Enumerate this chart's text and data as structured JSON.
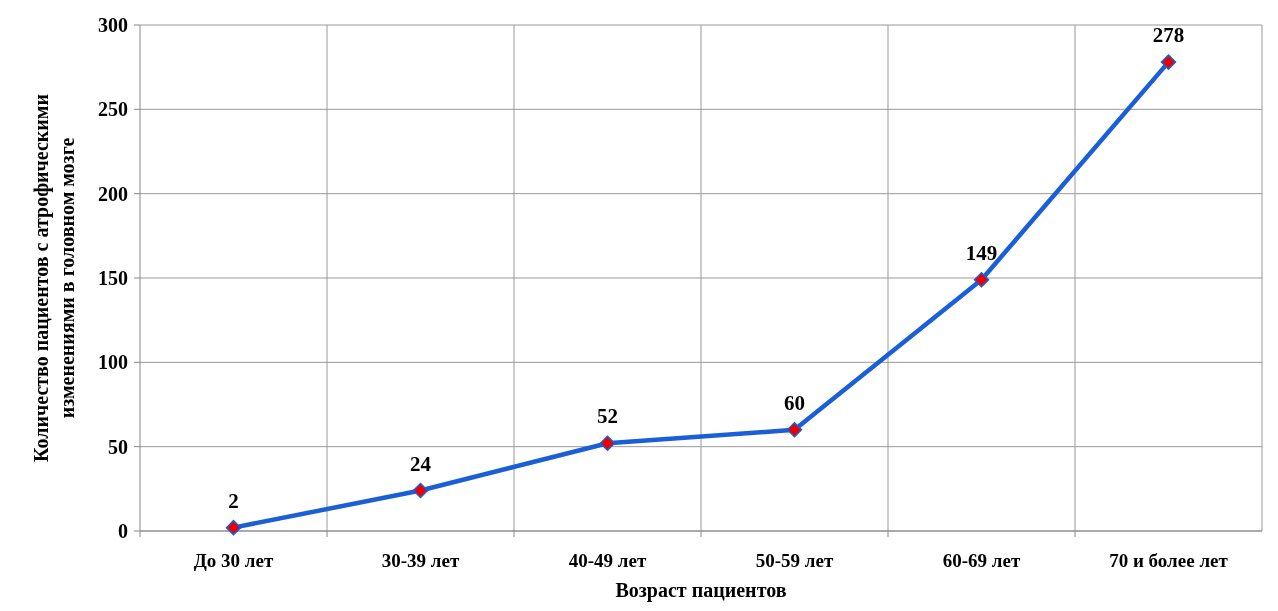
{
  "chart_data": {
    "type": "line",
    "xlabel": "Возраст пациентов",
    "ylabel": "Количество пациентов  с атрофическими\nизменениями в головном мозге",
    "categories": [
      "До 30 лет",
      "30-39 лет",
      "40-49 лет",
      "50-59 лет",
      "60-69 лет",
      "70 и более лет"
    ],
    "series": [
      {
        "color": "#1a5fd8",
        "values": [
          2,
          24,
          52,
          60,
          149,
          278
        ]
      }
    ],
    "ylim": [
      0,
      300
    ],
    "yticks": [
      0,
      50,
      100,
      150,
      200,
      250,
      300
    ],
    "grid": true,
    "marker": "diamond",
    "line_style": "solid",
    "data_labels": true
  }
}
